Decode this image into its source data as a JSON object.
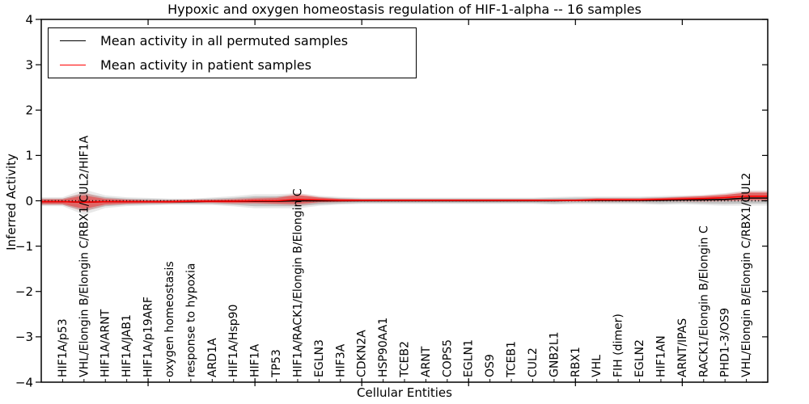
{
  "figure": {
    "title": "Hypoxic and oxygen homeostasis regulation of HIF-1-alpha -- 16 samples",
    "xlabel": "Cellular Entities",
    "ylabel": "Inferred Activity"
  },
  "legend": {
    "items": [
      {
        "label": "Mean activity in all permuted samples",
        "color": "#000000"
      },
      {
        "label": "Mean activity in patient samples",
        "color": "#ff0000"
      }
    ]
  },
  "chart_data": {
    "type": "line",
    "title": "Hypoxic and oxygen homeostasis regulation of HIF-1-alpha -- 16 samples",
    "xlabel": "Cellular Entities",
    "ylabel": "Inferred Activity",
    "ylim": [
      -4,
      4
    ],
    "xlim": [
      0,
      34
    ],
    "ytick_labels": [
      "4",
      "3",
      "2",
      "1",
      "0",
      "−1",
      "−2",
      "−3",
      "−4"
    ],
    "yticks": [
      4,
      3,
      2,
      1,
      0,
      -1,
      -2,
      -3,
      -4
    ],
    "x_major_ticks": [
      5,
      10,
      15,
      20,
      25,
      30
    ],
    "grid": false,
    "legend_position": "upper left",
    "zero_line": {
      "y": 0,
      "style": "dotted",
      "color": "#000000"
    },
    "categories": [
      "HIF1A/p53",
      "VHL/Elongin B/Elongin C/RBX1/CUL2/HIF1A",
      "HIF1A/ARNT",
      "HIF1A/JAB1",
      "HIF1A/p19ARF",
      "oxygen homeostasis",
      "response to hypoxia",
      "ARD1A",
      "HIF1A/Hsp90",
      "HIF1A",
      "TP53",
      "HIF1A/RACK1/Elongin B/Elongin C",
      "EGLN3",
      "HIF3A",
      "CDKN2A",
      "HSP90AA1",
      "TCEB2",
      "ARNT",
      "COPS5",
      "EGLN1",
      "OS9",
      "TCEB1",
      "CUL2",
      "GNB2L1",
      "RBX1",
      "VHL",
      "FIH (dimer)",
      "EGLN2",
      "HIF1AN",
      "ARNT/IPAS",
      "RACK1/Elongin B/Elongin C",
      "PHD1-3/OS9",
      "VHL/Elongin B/Elongin C/RBX1/CUL2"
    ],
    "series": [
      {
        "name": "Mean activity in all permuted samples",
        "color": "#000000",
        "band_inner_opacity": 0.16,
        "band_outer_opacity": 0.09,
        "mean": [
          -0.02,
          -0.03,
          -0.02,
          -0.02,
          -0.02,
          -0.02,
          -0.02,
          -0.01,
          -0.01,
          -0.01,
          -0.01,
          0.0,
          0.0,
          0.0,
          0.0,
          0.0,
          0.0,
          0.0,
          0.0,
          0.0,
          0.0,
          0.0,
          0.0,
          0.0,
          0.01,
          0.01,
          0.01,
          0.01,
          0.01,
          0.02,
          0.02,
          0.03,
          0.06
        ],
        "std": [
          0.07,
          0.2,
          0.1,
          0.07,
          0.06,
          0.05,
          0.05,
          0.06,
          0.08,
          0.11,
          0.11,
          0.12,
          0.08,
          0.06,
          0.05,
          0.05,
          0.05,
          0.05,
          0.05,
          0.05,
          0.05,
          0.05,
          0.05,
          0.06,
          0.06,
          0.06,
          0.06,
          0.06,
          0.07,
          0.07,
          0.08,
          0.1,
          0.12
        ]
      },
      {
        "name": "Mean activity in patient samples",
        "color": "#ff0000",
        "band_inner_opacity": 0.38,
        "band_outer_opacity": 0.15,
        "mean": [
          -0.02,
          -0.03,
          -0.02,
          -0.02,
          -0.02,
          -0.02,
          -0.01,
          -0.01,
          -0.01,
          0.0,
          0.0,
          0.03,
          0.02,
          0.01,
          0.01,
          0.01,
          0.01,
          0.01,
          0.01,
          0.01,
          0.01,
          0.01,
          0.01,
          0.01,
          0.01,
          0.02,
          0.02,
          0.02,
          0.03,
          0.04,
          0.05,
          0.07,
          0.1
        ],
        "std": [
          0.05,
          0.15,
          0.06,
          0.04,
          0.03,
          0.03,
          0.03,
          0.03,
          0.04,
          0.05,
          0.06,
          0.1,
          0.05,
          0.03,
          0.02,
          0.02,
          0.02,
          0.02,
          0.02,
          0.02,
          0.02,
          0.02,
          0.02,
          0.02,
          0.02,
          0.03,
          0.03,
          0.03,
          0.03,
          0.04,
          0.05,
          0.06,
          0.08
        ]
      }
    ]
  }
}
